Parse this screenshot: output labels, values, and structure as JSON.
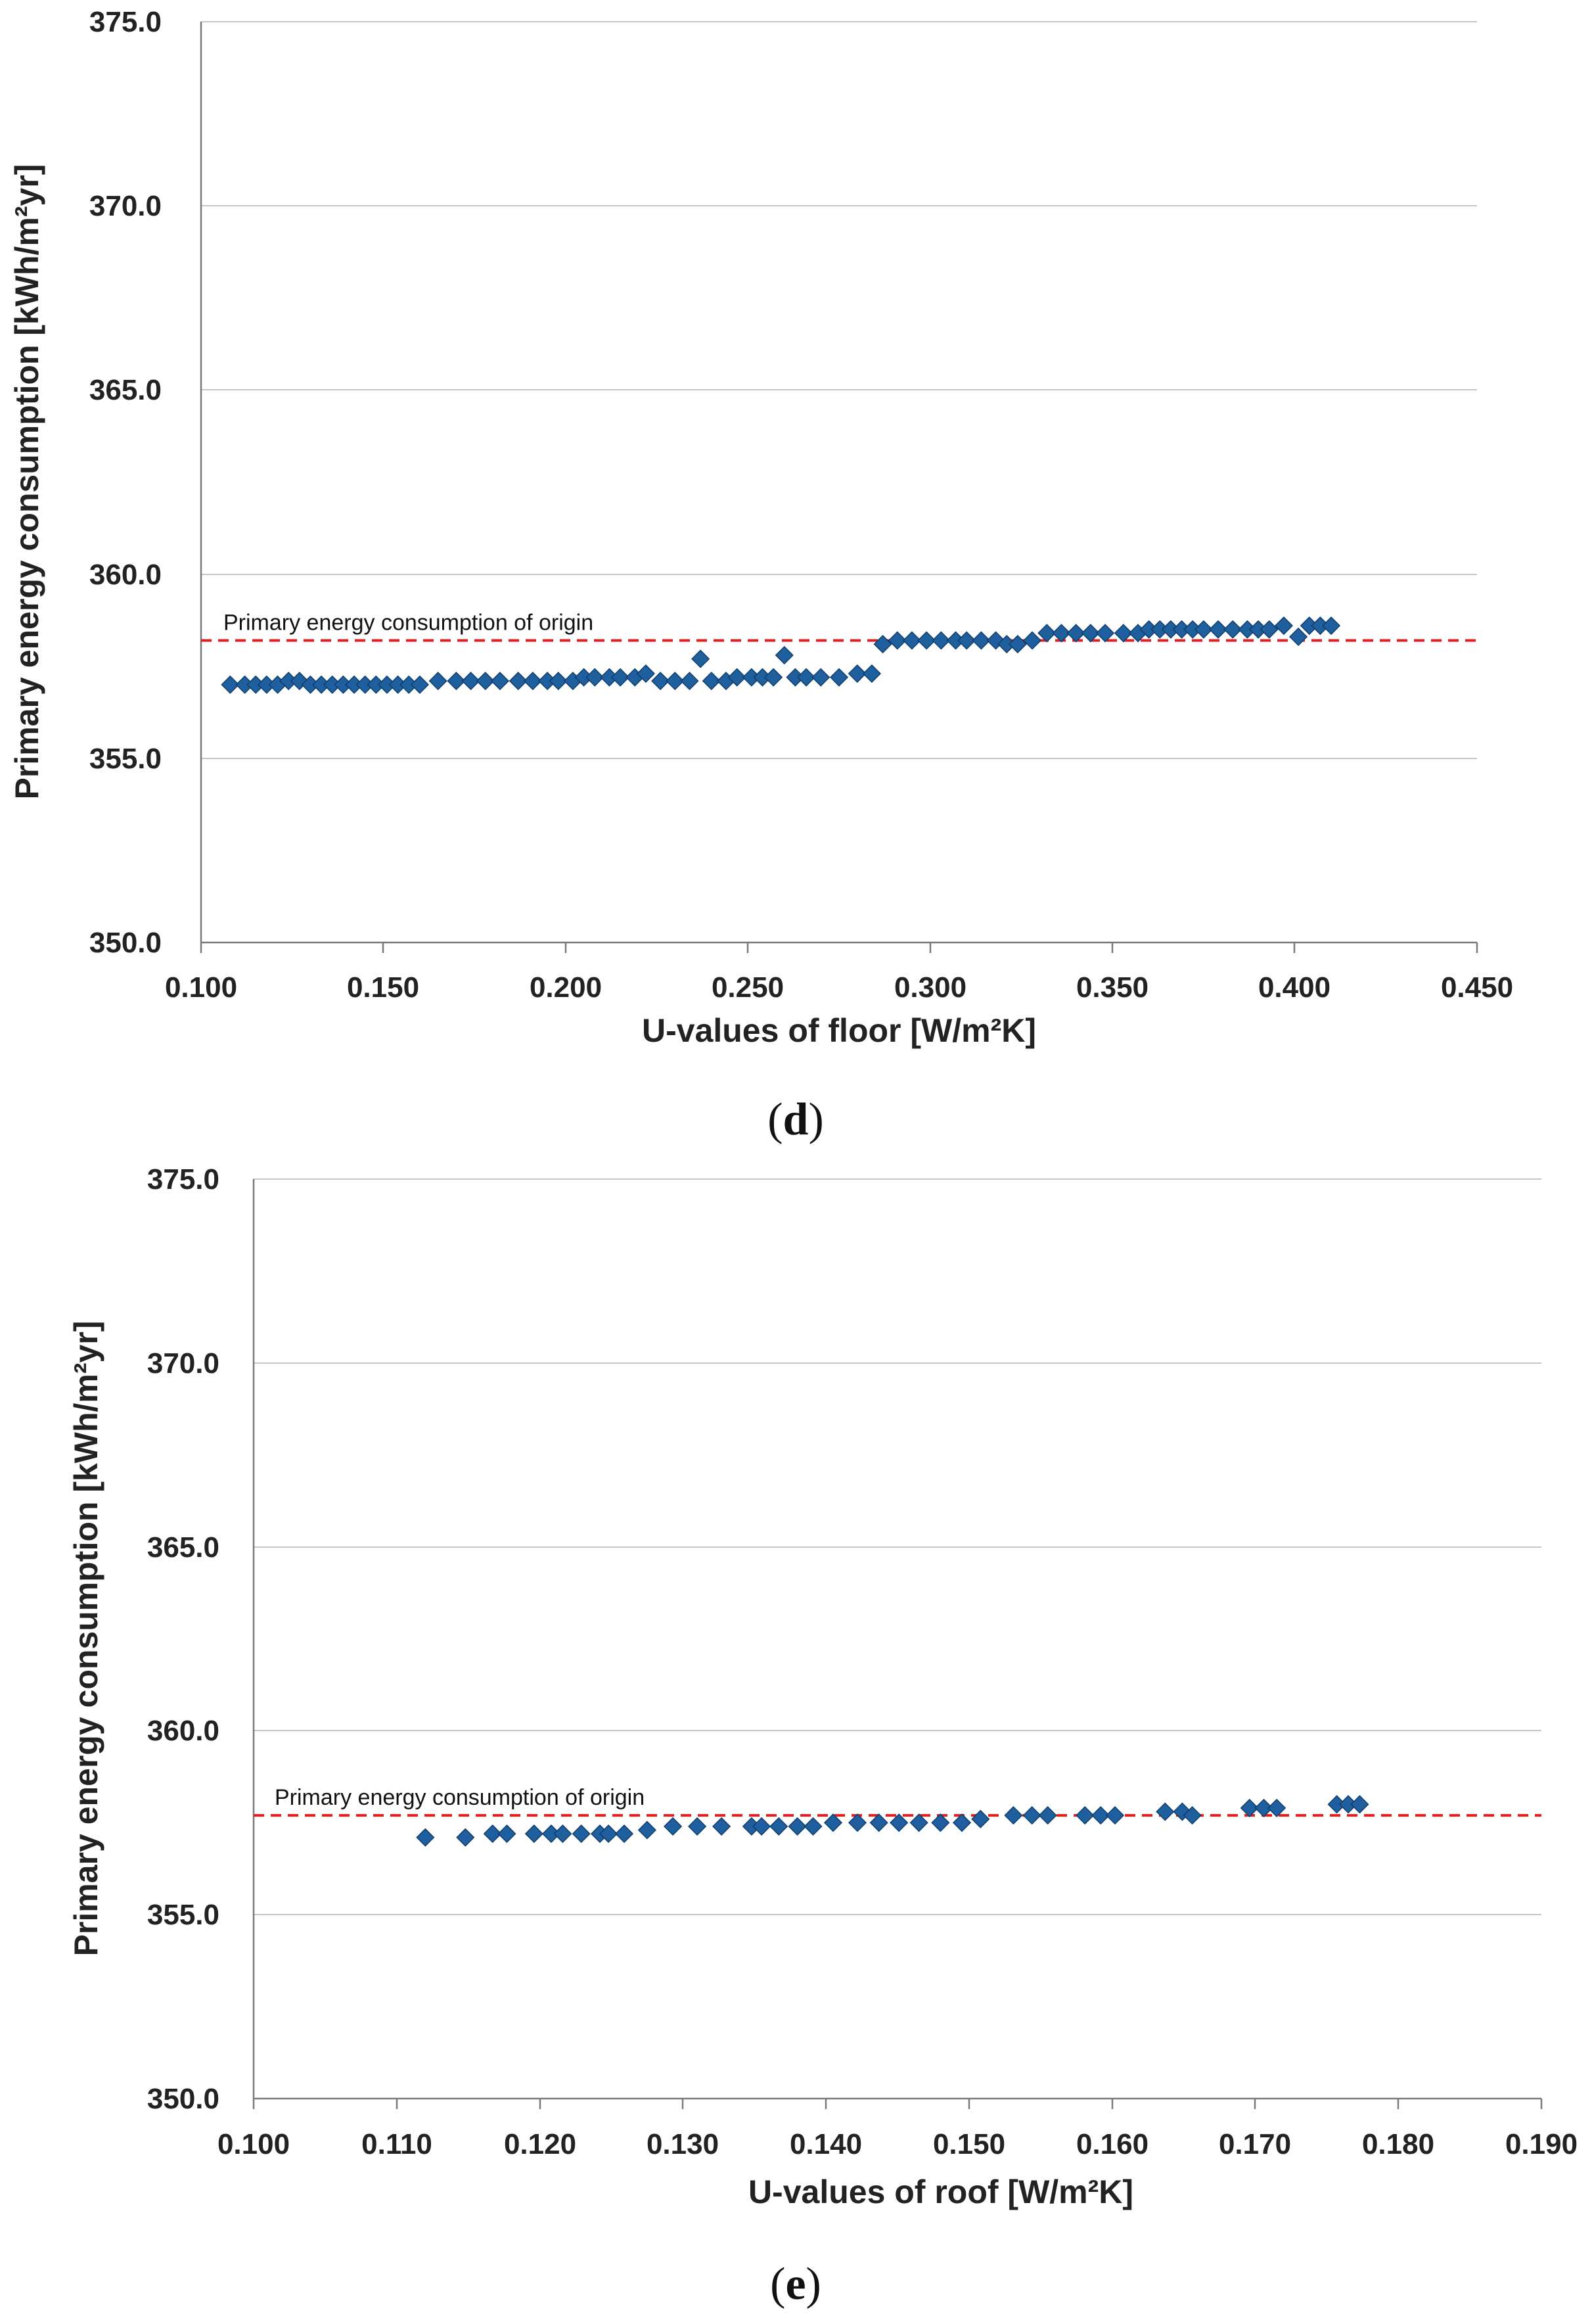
{
  "colors": {
    "marker": "#1f5f9e",
    "marker_stroke": "#0d3d6e",
    "reference_line": "#e02020",
    "grid": "#c8c8c8",
    "axis": "#7a7a7a"
  },
  "chart_data": [
    {
      "type": "scatter",
      "panel_label": "d",
      "xlabel": "U-values of floor [W/m²K]",
      "ylabel": "Primary energy consumption [kWh/m²yr]",
      "xlim": [
        0.1,
        0.45
      ],
      "ylim": [
        350.0,
        375.0
      ],
      "x_ticks": [
        "0.100",
        "0.150",
        "0.200",
        "0.250",
        "0.300",
        "0.350",
        "0.400",
        "0.450"
      ],
      "y_ticks": [
        "350.0",
        "355.0",
        "360.0",
        "365.0",
        "370.0",
        "375.0"
      ],
      "grid": "horizontal",
      "reference": {
        "label": "Primary energy consumption  of origin",
        "y": 358.2
      },
      "series": [
        {
          "name": "floor",
          "x": [
            0.108,
            0.112,
            0.115,
            0.118,
            0.121,
            0.124,
            0.127,
            0.13,
            0.133,
            0.136,
            0.139,
            0.142,
            0.145,
            0.148,
            0.151,
            0.154,
            0.157,
            0.16,
            0.165,
            0.17,
            0.174,
            0.178,
            0.182,
            0.187,
            0.191,
            0.195,
            0.198,
            0.202,
            0.205,
            0.208,
            0.212,
            0.215,
            0.219,
            0.222,
            0.226,
            0.23,
            0.234,
            0.237,
            0.24,
            0.244,
            0.247,
            0.251,
            0.254,
            0.257,
            0.26,
            0.263,
            0.266,
            0.27,
            0.275,
            0.28,
            0.284,
            0.287,
            0.291,
            0.295,
            0.299,
            0.303,
            0.307,
            0.31,
            0.314,
            0.318,
            0.321,
            0.324,
            0.328,
            0.332,
            0.336,
            0.34,
            0.344,
            0.348,
            0.353,
            0.357,
            0.36,
            0.363,
            0.366,
            0.369,
            0.372,
            0.375,
            0.379,
            0.383,
            0.387,
            0.39,
            0.393,
            0.397,
            0.401,
            0.404,
            0.407,
            0.41
          ],
          "y": [
            357.0,
            357.0,
            357.0,
            357.0,
            357.0,
            357.1,
            357.1,
            357.0,
            357.0,
            357.0,
            357.0,
            357.0,
            357.0,
            357.0,
            357.0,
            357.0,
            357.0,
            357.0,
            357.1,
            357.1,
            357.1,
            357.1,
            357.1,
            357.1,
            357.1,
            357.1,
            357.1,
            357.1,
            357.2,
            357.2,
            357.2,
            357.2,
            357.2,
            357.3,
            357.1,
            357.1,
            357.1,
            357.7,
            357.1,
            357.1,
            357.2,
            357.2,
            357.2,
            357.2,
            357.8,
            357.2,
            357.2,
            357.2,
            357.2,
            357.3,
            357.3,
            358.1,
            358.2,
            358.2,
            358.2,
            358.2,
            358.2,
            358.2,
            358.2,
            358.2,
            358.1,
            358.1,
            358.2,
            358.4,
            358.4,
            358.4,
            358.4,
            358.4,
            358.4,
            358.4,
            358.5,
            358.5,
            358.5,
            358.5,
            358.5,
            358.5,
            358.5,
            358.5,
            358.5,
            358.5,
            358.5,
            358.6,
            358.3,
            358.6,
            358.6,
            358.6
          ]
        }
      ]
    },
    {
      "type": "scatter",
      "panel_label": "e",
      "xlabel": "U-values of roof [W/m²K]",
      "ylabel": "Primary energy consumption [kWh/m²yr]",
      "xlim": [
        0.1,
        0.19
      ],
      "ylim": [
        350.0,
        375.0
      ],
      "x_ticks": [
        "0.100",
        "0.110",
        "0.120",
        "0.130",
        "0.140",
        "0.150",
        "0.160",
        "0.170",
        "0.180",
        "0.190"
      ],
      "y_ticks": [
        "350.0",
        "355.0",
        "360.0",
        "365.0",
        "370.0",
        "375.0"
      ],
      "grid": "horizontal",
      "reference": {
        "label": "Primary energy consumption  of origin",
        "y": 357.7
      },
      "series": [
        {
          "name": "roof",
          "x": [
            0.112,
            0.1148,
            0.1167,
            0.1177,
            0.1196,
            0.1208,
            0.1216,
            0.1229,
            0.1242,
            0.1248,
            0.1259,
            0.1275,
            0.1293,
            0.131,
            0.1327,
            0.1348,
            0.1355,
            0.1367,
            0.138,
            0.1391,
            0.1405,
            0.1422,
            0.1437,
            0.1451,
            0.1465,
            0.148,
            0.1495,
            0.1508,
            0.1531,
            0.1544,
            0.1555,
            0.1581,
            0.1592,
            0.1602,
            0.1637,
            0.1649,
            0.1656,
            0.1696,
            0.1706,
            0.1715,
            0.1757,
            0.1765,
            0.1773
          ],
          "y": [
            357.1,
            357.1,
            357.2,
            357.2,
            357.2,
            357.2,
            357.2,
            357.2,
            357.2,
            357.2,
            357.2,
            357.3,
            357.4,
            357.4,
            357.4,
            357.4,
            357.4,
            357.4,
            357.4,
            357.4,
            357.5,
            357.5,
            357.5,
            357.5,
            357.5,
            357.5,
            357.5,
            357.6,
            357.7,
            357.7,
            357.7,
            357.7,
            357.7,
            357.7,
            357.8,
            357.8,
            357.7,
            357.9,
            357.9,
            357.9,
            358.0,
            358.0,
            358.0
          ]
        }
      ]
    }
  ]
}
